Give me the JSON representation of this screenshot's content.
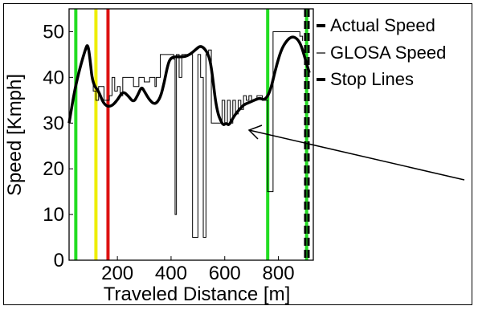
{
  "chart_data": {
    "type": "line",
    "title": "",
    "xlabel": "Traveled Distance [m]",
    "ylabel": "Speed [Kmph]",
    "xlim": [
      20,
      930
    ],
    "ylim": [
      0,
      55
    ],
    "xticks": [
      200,
      400,
      600,
      800
    ],
    "yticks": [
      0,
      10,
      20,
      30,
      40,
      50
    ],
    "grid": false,
    "legend_position": "right",
    "legend": [
      "Actual Speed",
      "GLOSA Speed",
      "Stop Lines"
    ],
    "colors": {
      "actual": "#000000",
      "glosa": "#000000",
      "stop_lines": "#000000",
      "signal_green": "#22dd22",
      "signal_yellow": "#eeee00",
      "signal_red": "#dd1111"
    },
    "series": [
      {
        "name": "Actual Speed",
        "style": "thick solid",
        "x": [
          20,
          40,
          60,
          80,
          90,
          100,
          105,
          115,
          130,
          150,
          175,
          200,
          220,
          240,
          260,
          275,
          290,
          300,
          320,
          340,
          360,
          375,
          385,
          395,
          410,
          430,
          450,
          470,
          490,
          510,
          530,
          545,
          555,
          565,
          575,
          585,
          595,
          605,
          615,
          625,
          640,
          655,
          670,
          690,
          710,
          730,
          750,
          770,
          790,
          810,
          830,
          850,
          870,
          885,
          900,
          915
        ],
        "y": [
          30,
          37,
          42,
          46,
          47.5,
          43,
          40,
          38,
          37,
          34,
          33.5,
          35,
          37,
          36,
          34.5,
          36,
          38,
          37,
          35,
          34,
          35.5,
          39,
          42,
          44,
          44.5,
          44.5,
          44.5,
          45,
          46,
          47,
          46,
          44,
          40,
          35,
          32,
          30.5,
          29.5,
          30,
          29.5,
          30.5,
          32,
          33,
          34,
          34.5,
          35,
          35.5,
          35,
          37,
          42,
          46,
          48,
          49,
          48.5,
          47,
          44,
          41
        ]
      },
      {
        "name": "GLOSA Speed",
        "style": "thin solid",
        "x": [
          105,
          110,
          120,
          130,
          150,
          170,
          180,
          190,
          200,
          210,
          220,
          240,
          260,
          280,
          300,
          320,
          340,
          345,
          350,
          360,
          380,
          400,
          410,
          415,
          420,
          425,
          430,
          440,
          460,
          480,
          500,
          510,
          520,
          530,
          540,
          550,
          560,
          570,
          580,
          590,
          600,
          610,
          620,
          630,
          640,
          650,
          660,
          670,
          680,
          690,
          700,
          720,
          740,
          760,
          780,
          800,
          820,
          840,
          860,
          880,
          890
        ],
        "y": [
          40,
          37,
          35,
          38,
          35,
          36,
          40,
          37,
          38,
          36,
          40,
          40,
          38,
          40,
          39,
          40,
          38,
          40,
          40,
          45,
          45,
          45,
          44,
          10,
          45,
          45,
          40,
          45,
          45,
          5,
          45,
          40,
          5,
          45,
          46,
          30,
          30,
          30,
          30,
          35,
          30,
          35,
          30,
          35,
          32,
          35,
          33,
          36,
          35,
          36,
          35,
          36,
          35,
          15,
          50,
          50,
          50,
          50,
          50,
          49,
          48
        ]
      }
    ],
    "stop_lines": [
      900,
      912
    ],
    "signal_lines": [
      {
        "x": 45,
        "color": "green"
      },
      {
        "x": 120,
        "color": "yellow"
      },
      {
        "x": 165,
        "color": "red"
      },
      {
        "x": 760,
        "color": "green"
      },
      {
        "x": 905,
        "color": "green"
      }
    ]
  }
}
